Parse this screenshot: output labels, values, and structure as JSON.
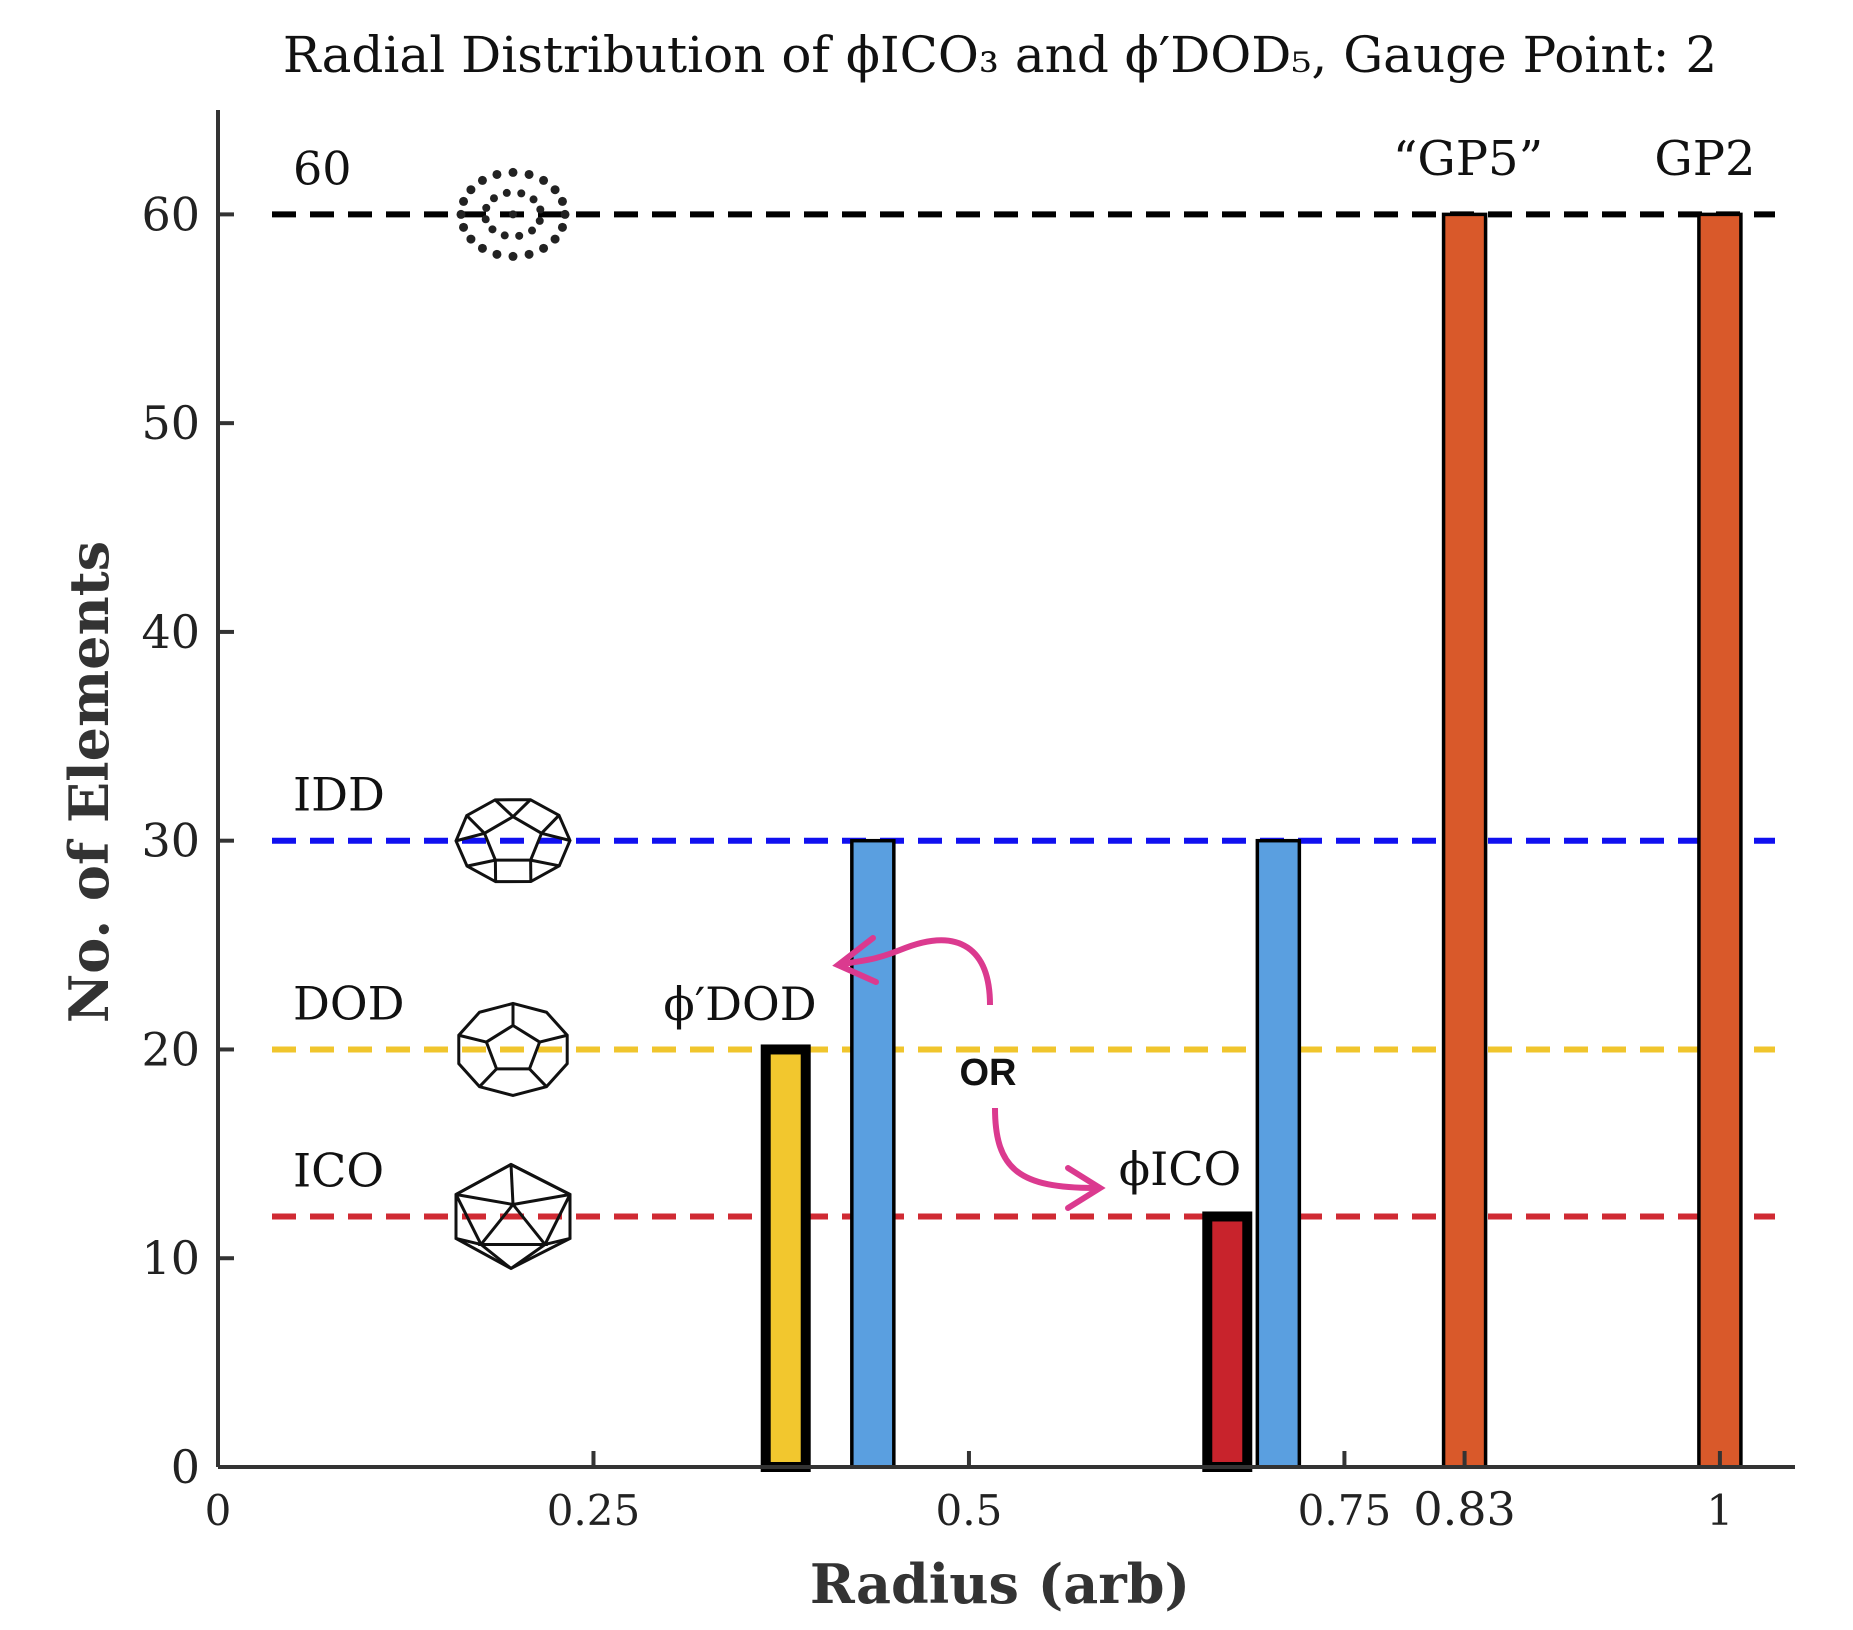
{
  "chart_data": {
    "type": "bar",
    "title": "Radial Distribution of ϕICO₃ and ϕ′DOD₅, Gauge Point: 2",
    "xlabel": "Radius (arb)",
    "ylabel": "No. of Elements",
    "xlim": [
      0,
      1.05
    ],
    "ylim": [
      0,
      65
    ],
    "xticks": [
      {
        "value": 0,
        "label": "0"
      },
      {
        "value": 0.25,
        "label": "0.25"
      },
      {
        "value": 0.5,
        "label": "0.5"
      },
      {
        "value": 0.75,
        "label": "0.75"
      },
      {
        "value": 0.83,
        "label": "0.83"
      },
      {
        "value": 1,
        "label": "1"
      }
    ],
    "yticks": [
      {
        "value": 0,
        "label": "0"
      },
      {
        "value": 10,
        "label": "10"
      },
      {
        "value": 20,
        "label": "20"
      },
      {
        "value": 30,
        "label": "30"
      },
      {
        "value": 40,
        "label": "40"
      },
      {
        "value": 50,
        "label": "50"
      },
      {
        "value": 60,
        "label": "60"
      }
    ],
    "bars": [
      {
        "x": 0.378,
        "value": 20,
        "color": "#F2C72E",
        "outline": "thick"
      },
      {
        "x": 0.436,
        "value": 30,
        "color": "#5A9FE0",
        "outline": "thin"
      },
      {
        "x": 0.672,
        "value": 12,
        "color": "#C8232C",
        "outline": "thick"
      },
      {
        "x": 0.706,
        "value": 30,
        "color": "#5A9FE0",
        "outline": "thin"
      },
      {
        "x": 0.83,
        "value": 60,
        "color": "#D9592A",
        "outline": "thin"
      },
      {
        "x": 1.0,
        "value": 60,
        "color": "#D9592A",
        "outline": "thin"
      }
    ],
    "reference_lines": [
      {
        "y": 60,
        "label": "60",
        "color": "#000000",
        "shape": "dots"
      },
      {
        "y": 30,
        "label": "IDD",
        "color": "#1010F0",
        "shape": "icosidodecahedron"
      },
      {
        "y": 20,
        "label": "DOD",
        "color": "#F0C52C",
        "shape": "dodecahedron"
      },
      {
        "y": 12,
        "label": "ICO",
        "color": "#D02A33",
        "shape": "icosahedron"
      }
    ],
    "annotations": [
      {
        "text": "ϕ′DOD",
        "x": 0.35,
        "y": 22
      },
      {
        "text": "ϕICO",
        "x": 0.63,
        "y": 13.5
      },
      {
        "text": "OR",
        "x": 0.51,
        "y": 19
      },
      {
        "text": "“GP5”",
        "x": 0.83,
        "y": 62
      },
      {
        "text": "GP2",
        "x": 1.0,
        "y": 62
      }
    ],
    "arrow_color": "#DB3A8F"
  }
}
